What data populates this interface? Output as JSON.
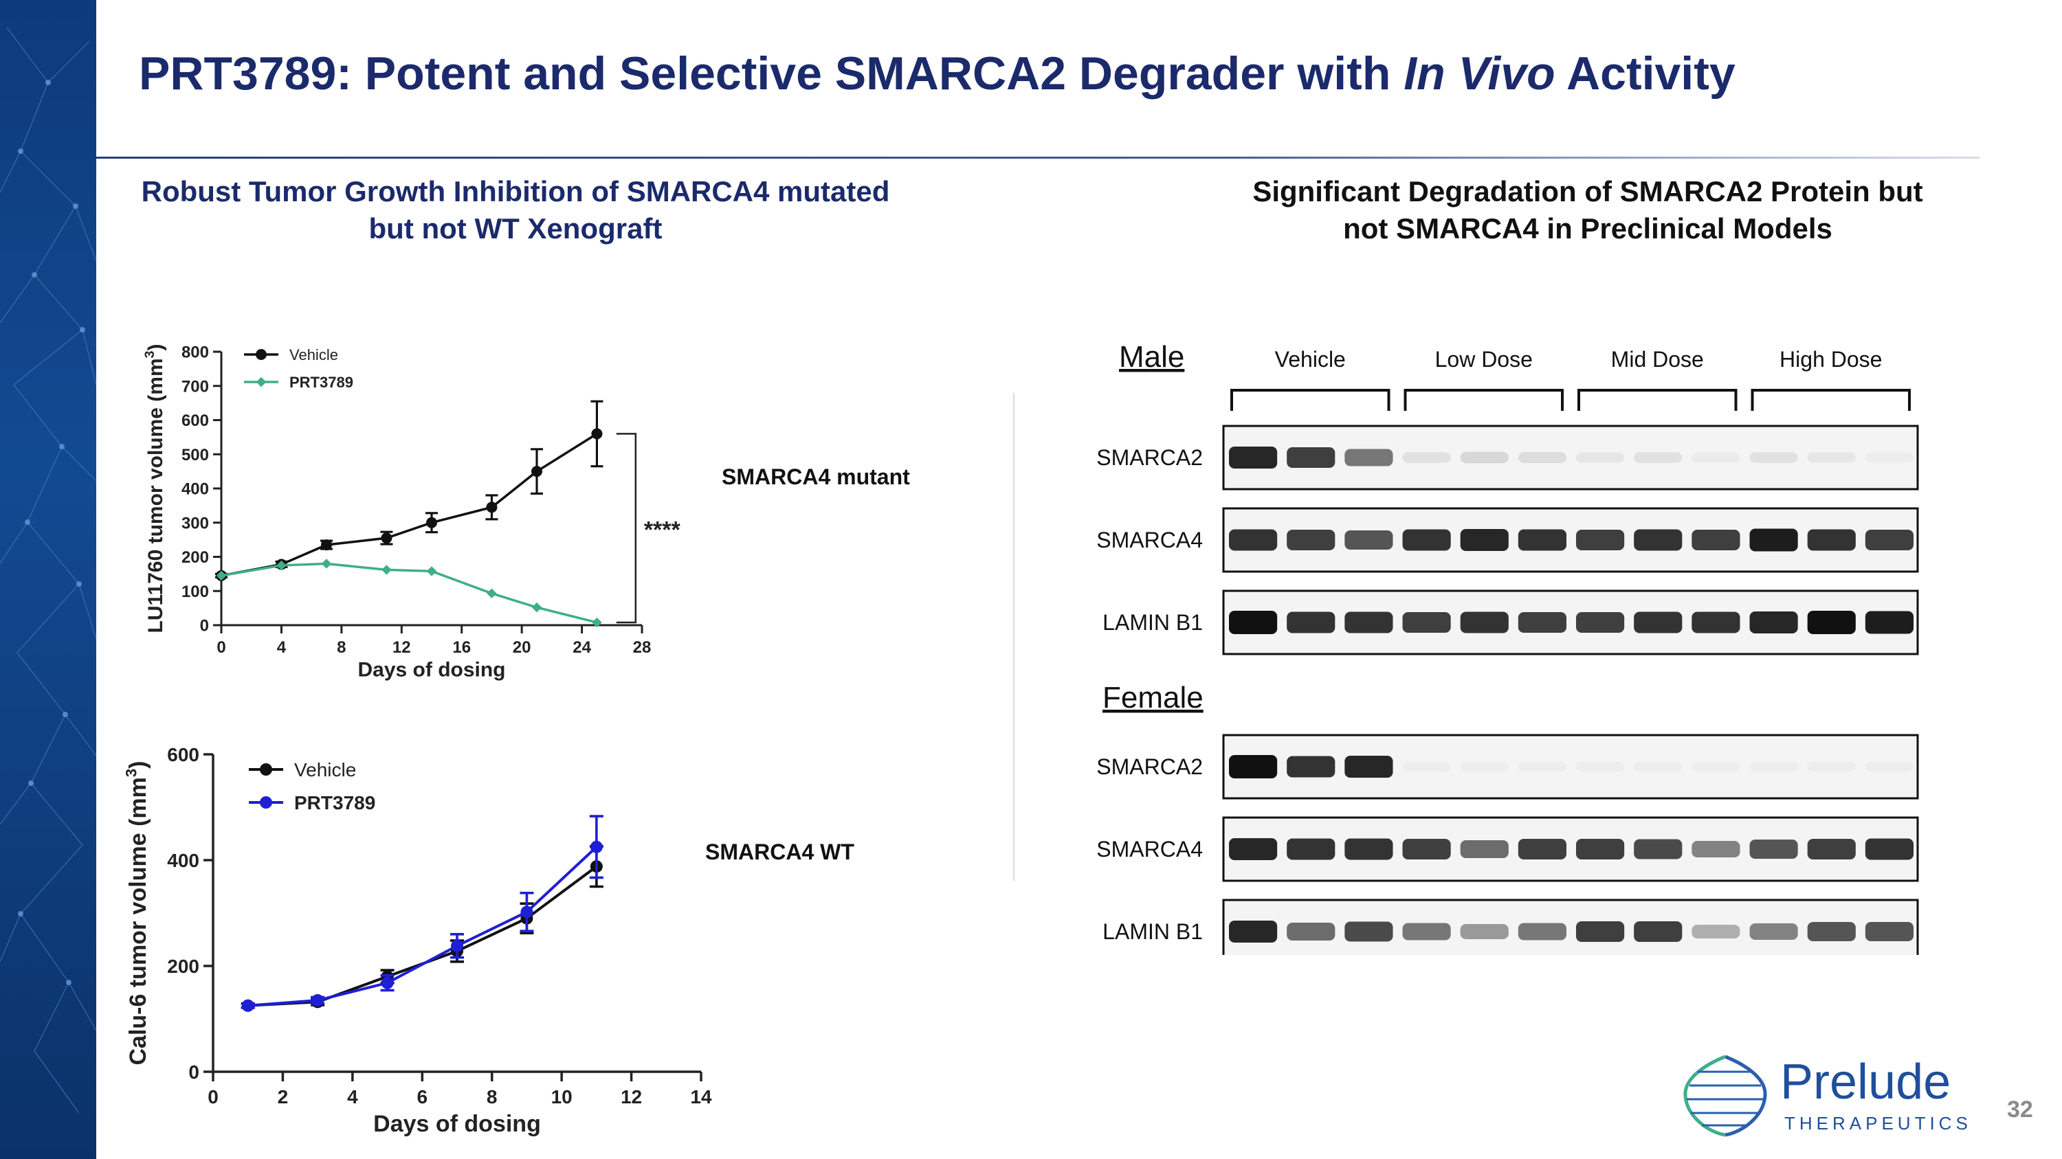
{
  "slide": {
    "title_pre": "PRT3789: Potent and Selective SMARCA2 Degrader with ",
    "title_italic": "In Vivo",
    "title_post": " Activity",
    "page_number": "32"
  },
  "left_section": {
    "heading_line1": "Robust Tumor Growth Inhibition of SMARCA4 mutated",
    "heading_line2": "but not WT Xenograft"
  },
  "right_section": {
    "heading_line1": "Significant Degradation of SMARCA2 Protein but",
    "heading_line2": "not SMARCA4 in Preclinical Models"
  },
  "colors": {
    "title": "#1b2a6b",
    "vehicle": "#111111",
    "prt3789_mutant": "#3fae8a",
    "prt3789_wt": "#1f1fd6",
    "brand": "#1f4f9c"
  },
  "chart_data": [
    {
      "type": "line",
      "model_label": "SMARCA4 mutant",
      "xlabel": "Days of dosing",
      "ylabel": "LU11760 tumor volume (mm",
      "ylabel_sup": "3",
      "ylabel_close": ")",
      "xlim": [
        0,
        28
      ],
      "ylim": [
        0,
        800
      ],
      "xticks": [
        0,
        4,
        8,
        12,
        16,
        20,
        24,
        28
      ],
      "yticks": [
        0,
        100,
        200,
        300,
        400,
        500,
        600,
        700,
        800
      ],
      "grid": false,
      "legend_position": "top-left",
      "series": [
        {
          "name": "Vehicle",
          "color": "#111111",
          "marker": "circle",
          "x": [
            0,
            4,
            7,
            11,
            14,
            18,
            21,
            25
          ],
          "y": [
            145,
            178,
            235,
            255,
            300,
            345,
            450,
            560
          ],
          "err": [
            5,
            8,
            12,
            18,
            28,
            35,
            65,
            95
          ]
        },
        {
          "name": "PRT3789",
          "color": "#3fae8a",
          "marker": "diamond",
          "x": [
            0,
            4,
            7,
            11,
            14,
            18,
            21,
            25
          ],
          "y": [
            145,
            175,
            180,
            162,
            158,
            93,
            52,
            8
          ],
          "err": [
            0,
            0,
            0,
            0,
            0,
            0,
            0,
            0
          ]
        }
      ],
      "annotation": "****"
    },
    {
      "type": "line",
      "model_label": "SMARCA4 WT",
      "xlabel": "Days of dosing",
      "ylabel": "Calu-6 tumor volume (mm",
      "ylabel_sup": "3",
      "ylabel_close": ")",
      "xlim": [
        0,
        14
      ],
      "ylim": [
        0,
        600
      ],
      "xticks": [
        0,
        2,
        4,
        6,
        8,
        10,
        12,
        14
      ],
      "yticks": [
        0,
        200,
        400,
        600
      ],
      "grid": false,
      "legend_position": "top-left",
      "series": [
        {
          "name": "Vehicle",
          "color": "#111111",
          "marker": "circle",
          "x": [
            1,
            3,
            5,
            7,
            9,
            11
          ],
          "y": [
            125,
            132,
            180,
            228,
            290,
            388
          ],
          "err": [
            4,
            6,
            12,
            20,
            28,
            38
          ]
        },
        {
          "name": "PRT3789",
          "color": "#1f1fd6",
          "marker": "circle",
          "x": [
            1,
            3,
            5,
            7,
            9,
            11
          ],
          "y": [
            125,
            135,
            168,
            238,
            302,
            425
          ],
          "err": [
            4,
            6,
            14,
            22,
            36,
            58
          ]
        }
      ]
    }
  ],
  "western_blot": {
    "groups": [
      "Vehicle",
      "Low Dose",
      "Mid Dose",
      "High Dose"
    ],
    "lanes_per_group": 3,
    "panels": [
      {
        "sex": "Male",
        "rows": [
          {
            "protein": "SMARCA2",
            "intensity": [
              0.9,
              0.8,
              0.55,
              0.08,
              0.12,
              0.1,
              0.06,
              0.08,
              0.04,
              0.08,
              0.06,
              0.03
            ]
          },
          {
            "protein": "SMARCA4",
            "intensity": [
              0.85,
              0.8,
              0.7,
              0.85,
              0.9,
              0.85,
              0.8,
              0.85,
              0.8,
              0.95,
              0.85,
              0.8
            ]
          },
          {
            "protein": "LAMIN B1",
            "intensity": [
              1.0,
              0.85,
              0.85,
              0.8,
              0.85,
              0.8,
              0.8,
              0.85,
              0.85,
              0.9,
              1.0,
              0.95
            ]
          }
        ]
      },
      {
        "sex": "Female",
        "rows": [
          {
            "protein": "SMARCA2",
            "intensity": [
              1.0,
              0.85,
              0.9,
              0.02,
              0.01,
              0.03,
              0.01,
              0.01,
              0.01,
              0.01,
              0.01,
              0.01
            ]
          },
          {
            "protein": "SMARCA4",
            "intensity": [
              0.9,
              0.85,
              0.85,
              0.8,
              0.6,
              0.8,
              0.8,
              0.75,
              0.5,
              0.7,
              0.8,
              0.85
            ]
          },
          {
            "protein": "LAMIN B1",
            "intensity": [
              0.9,
              0.6,
              0.75,
              0.55,
              0.4,
              0.55,
              0.8,
              0.8,
              0.3,
              0.5,
              0.7,
              0.7
            ]
          }
        ]
      }
    ]
  },
  "logo": {
    "name": "Prelude",
    "subtitle": "THERAPEUTICS"
  }
}
